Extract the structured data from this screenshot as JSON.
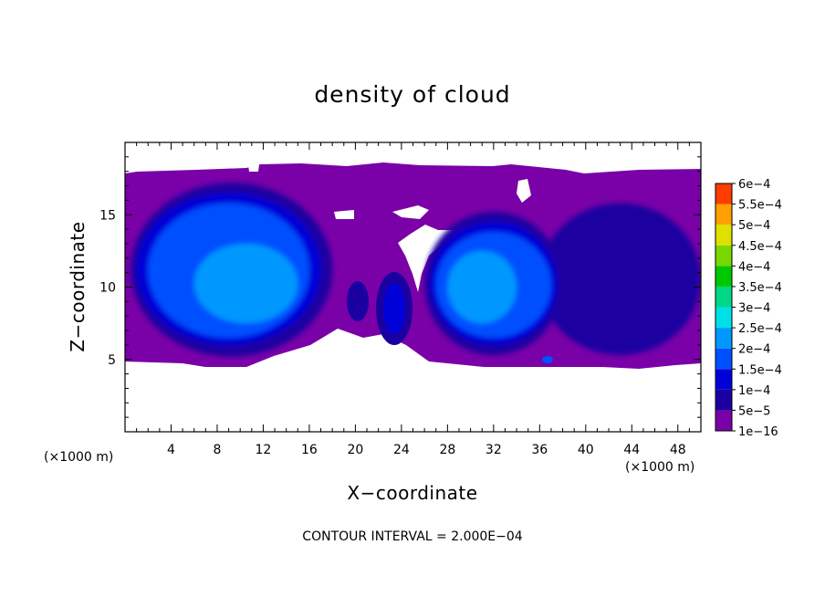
{
  "chart_data": {
    "type": "heatmap",
    "title": "density of cloud",
    "xlabel": "X−coordinate",
    "ylabel": "Z−coordinate",
    "x_unit": "(×1000 m)",
    "y_unit": "(×1000 m)",
    "xlim": [
      0,
      50
    ],
    "ylim": [
      0,
      20
    ],
    "x_ticks": [
      4,
      8,
      12,
      16,
      20,
      24,
      28,
      32,
      36,
      40,
      44,
      48
    ],
    "y_ticks": [
      5,
      10,
      15
    ],
    "footer": "CONTOUR INTERVAL = 2.000E−04",
    "colorbar": {
      "levels": [
        "1e−16",
        "5e−5",
        "1e−4",
        "1.5e−4",
        "2e−4",
        "2.5e−4",
        "3e−4",
        "3.5e−4",
        "4e−4",
        "4.5e−4",
        "5e−4",
        "5.5e−4",
        "6e−4"
      ],
      "colors": [
        "#7a00a8",
        "#1a00a0",
        "#0000d8",
        "#0050ff",
        "#0098ff",
        "#00e0e8",
        "#00d888",
        "#00c800",
        "#78d800",
        "#e0e000",
        "#ffa000",
        "#ff3c00",
        "#ff8080"
      ]
    },
    "regions": [
      {
        "x": [
          0,
          50
        ],
        "z": [
          4.5,
          18
        ],
        "level": 0
      },
      {
        "x": [
          0.5,
          18
        ],
        "z": [
          5.2,
          17.2
        ],
        "level": 1
      },
      {
        "x": [
          26,
          38
        ],
        "z": [
          5.3,
          15.2
        ],
        "level": 1
      },
      {
        "x": [
          36,
          50
        ],
        "z": [
          5.3,
          15.8
        ],
        "level": 1
      },
      {
        "x": [
          1,
          17
        ],
        "z": [
          6,
          16.5
        ],
        "level": 2
      },
      {
        "x": [
          26.5,
          37.5
        ],
        "z": [
          6,
          14.5
        ],
        "level": 2
      },
      {
        "x": [
          2,
          16
        ],
        "z": [
          6.5,
          15.8
        ],
        "level": 3
      },
      {
        "x": [
          27,
          37
        ],
        "z": [
          6.5,
          13.8
        ],
        "level": 3
      },
      {
        "x": [
          6,
          15
        ],
        "z": [
          7.5,
          13
        ],
        "level": 4
      },
      {
        "x": [
          28,
          34
        ],
        "z": [
          7.5,
          12.5
        ],
        "level": 4
      }
    ]
  }
}
